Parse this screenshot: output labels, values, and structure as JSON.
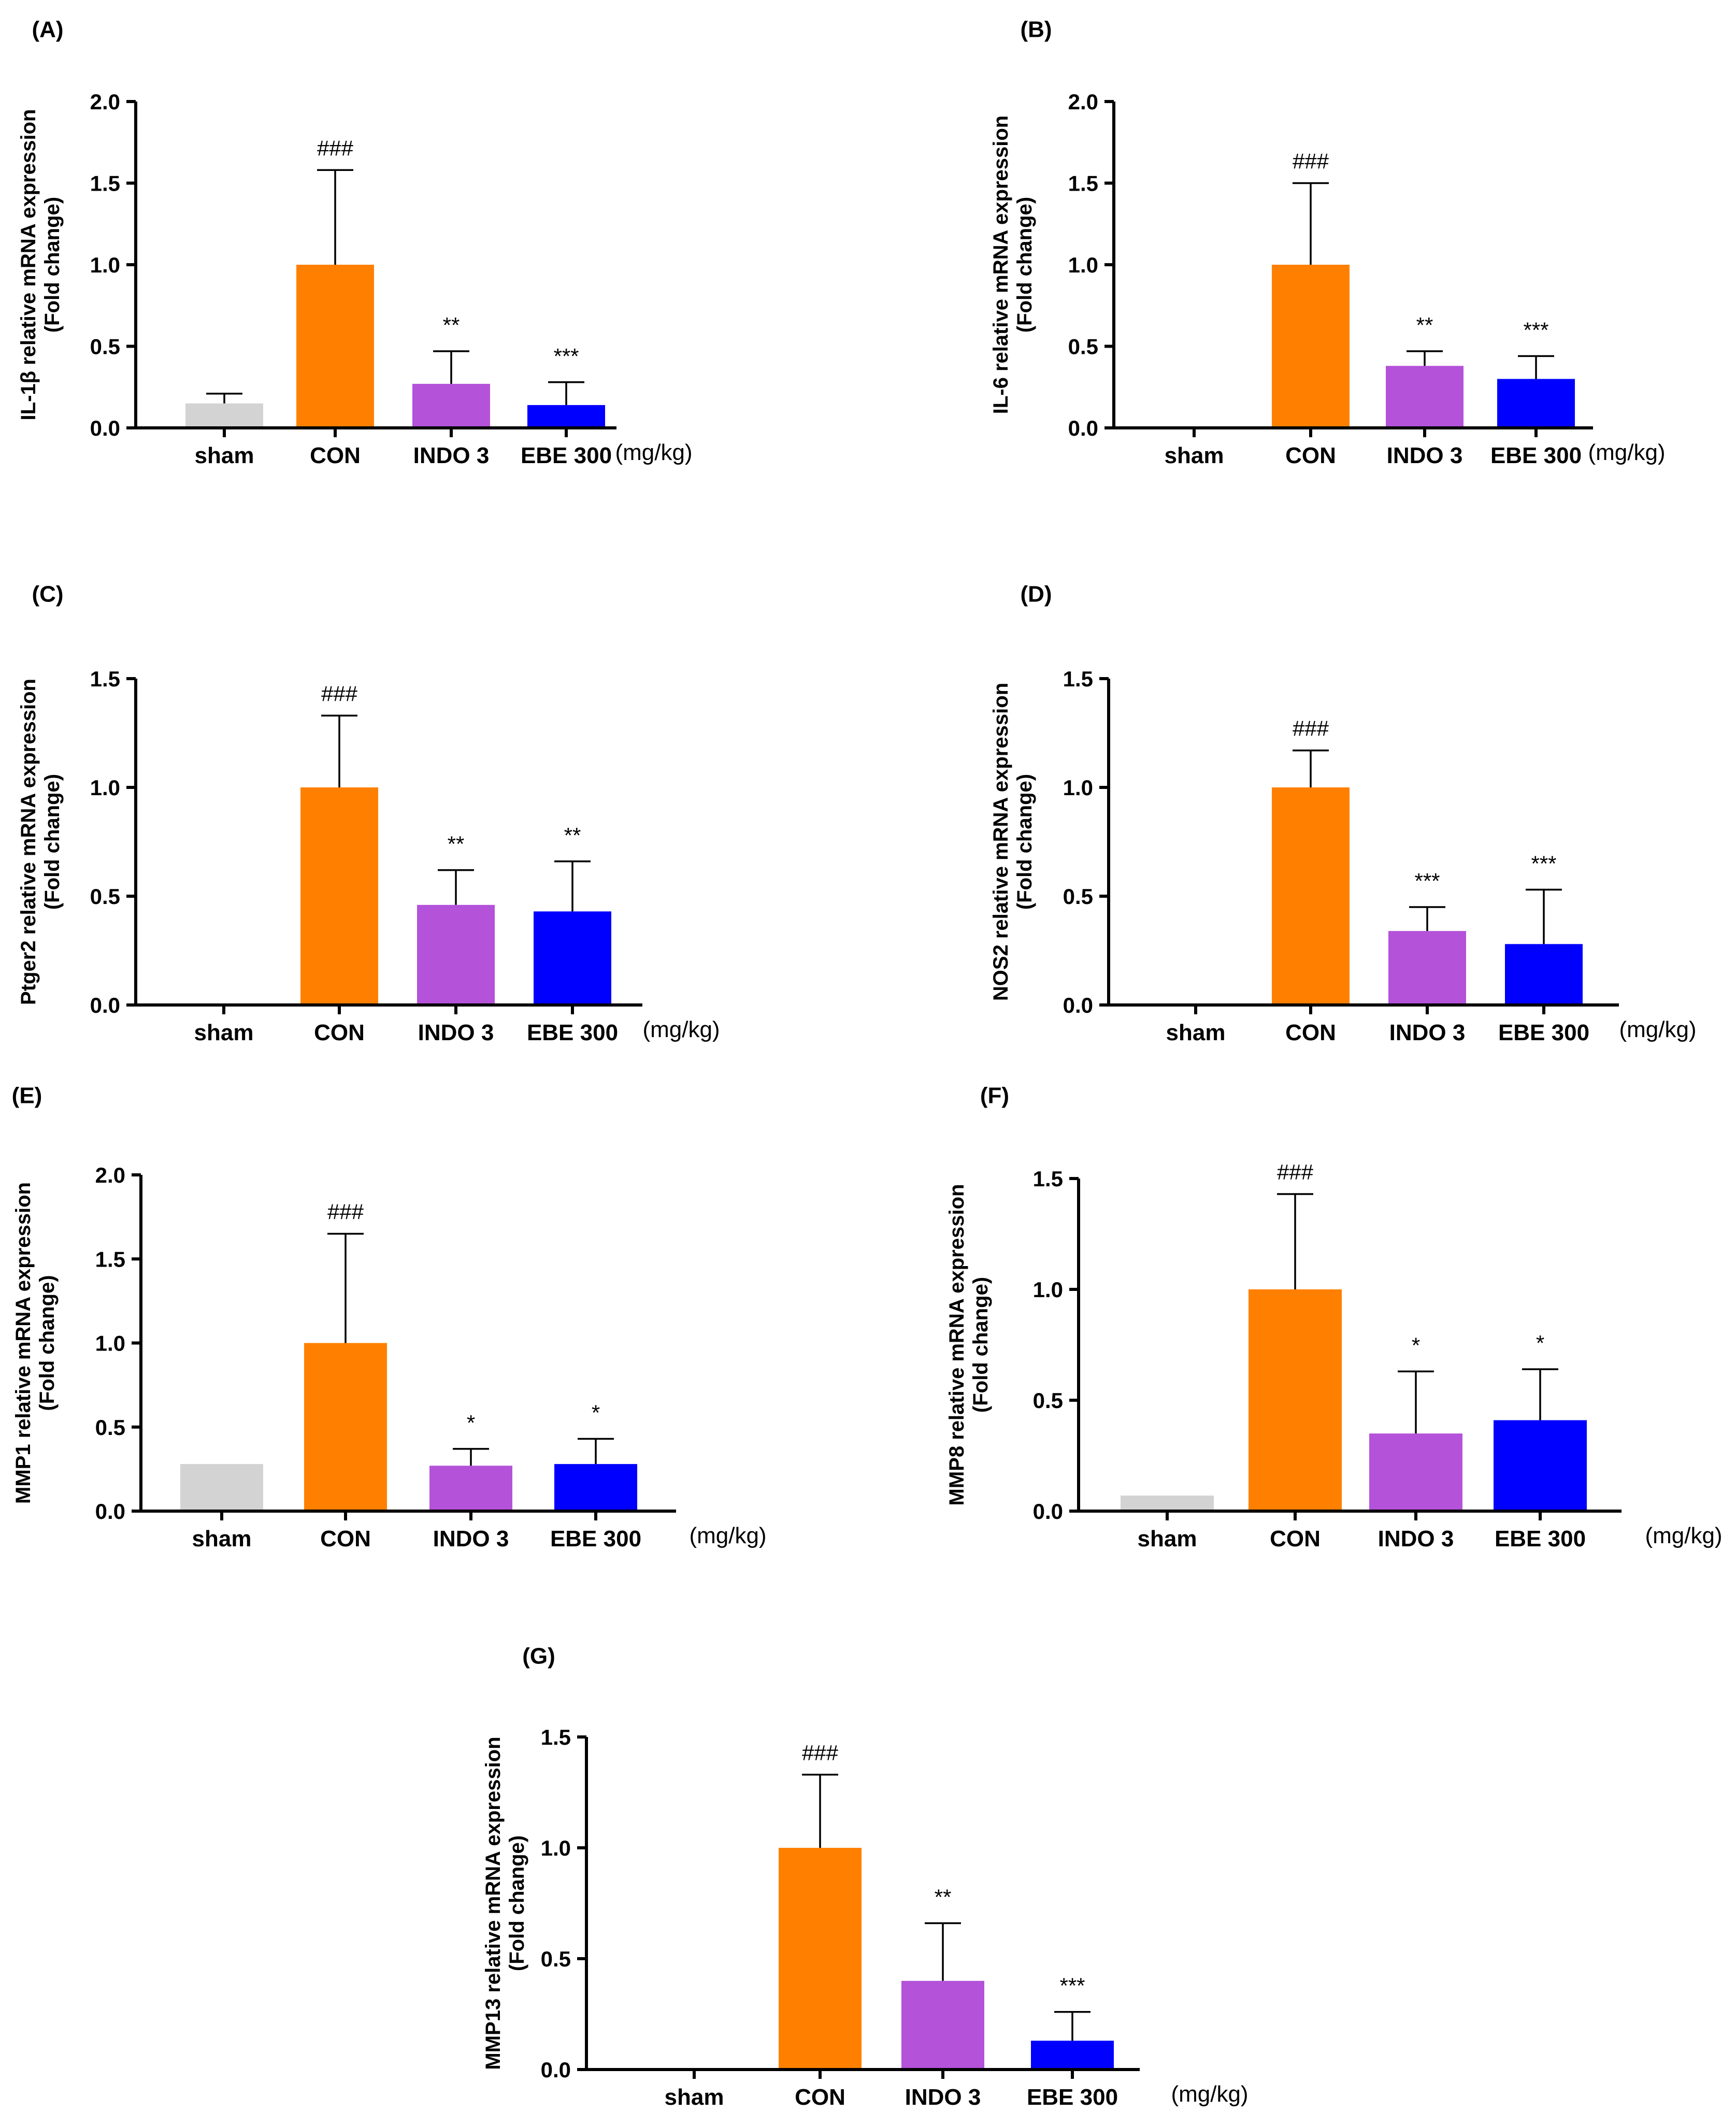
{
  "figure": {
    "unit_label": "(mg/kg)"
  },
  "colors": {
    "sham": "#d3d3d3",
    "CON": "#ff8000",
    "INDO 3": "#b452d9",
    "EBE 300": "#0000ff"
  },
  "chart_data": [
    {
      "type": "bar",
      "panel": "(A)",
      "ylabel_line1": "IL-1β relative mRNA expression",
      "ylabel_line2": "(Fold change)",
      "categories": [
        "sham",
        "CON",
        "INDO 3",
        "EBE 300"
      ],
      "values": [
        0.15,
        1.0,
        0.27,
        0.14
      ],
      "errors": [
        0.06,
        0.58,
        0.2,
        0.14
      ],
      "significance": [
        "",
        "###",
        "**",
        "***"
      ],
      "ylim": [
        0,
        2.0
      ],
      "yticks": [
        "0.0",
        "0.5",
        "1.0",
        "1.5",
        "2.0"
      ]
    },
    {
      "type": "bar",
      "panel": "(B)",
      "ylabel_line1": "IL-6 relative mRNA expression",
      "ylabel_line2": "(Fold change)",
      "categories": [
        "sham",
        "CON",
        "INDO 3",
        "EBE 300"
      ],
      "values": [
        0.0,
        1.0,
        0.38,
        0.3
      ],
      "errors": [
        0,
        0.5,
        0.09,
        0.14
      ],
      "significance": [
        "",
        "###",
        "**",
        "***"
      ],
      "ylim": [
        0,
        2.0
      ],
      "yticks": [
        "0.0",
        "0.5",
        "1.0",
        "1.5",
        "2.0"
      ]
    },
    {
      "type": "bar",
      "panel": "(C)",
      "ylabel_line1": "Ptger2 relative mRNA expression",
      "ylabel_line2": "(Fold change)",
      "categories": [
        "sham",
        "CON",
        "INDO 3",
        "EBE 300"
      ],
      "values": [
        0.0,
        1.0,
        0.46,
        0.43
      ],
      "errors": [
        0,
        0.33,
        0.16,
        0.23
      ],
      "significance": [
        "",
        "###",
        "**",
        "**"
      ],
      "ylim": [
        0,
        1.5
      ],
      "yticks": [
        "0.0",
        "0.5",
        "1.0",
        "1.5"
      ]
    },
    {
      "type": "bar",
      "panel": "(D)",
      "ylabel_line1": "NOS2 relative mRNA expression",
      "ylabel_line2": "(Fold change)",
      "categories": [
        "sham",
        "CON",
        "INDO 3",
        "EBE 300"
      ],
      "values": [
        0.0,
        1.0,
        0.34,
        0.28
      ],
      "errors": [
        0,
        0.17,
        0.11,
        0.25
      ],
      "significance": [
        "",
        "###",
        "***",
        "***"
      ],
      "ylim": [
        0,
        1.5
      ],
      "yticks": [
        "0.0",
        "0.5",
        "1.0",
        "1.5"
      ]
    },
    {
      "type": "bar",
      "panel": "(E)",
      "ylabel_line1": "MMP1 relative mRNA expression",
      "ylabel_line2": "(Fold change)",
      "categories": [
        "sham",
        "CON",
        "INDO 3",
        "EBE 300"
      ],
      "values": [
        0.28,
        1.0,
        0.27,
        0.28
      ],
      "errors": [
        0,
        0.65,
        0.1,
        0.15
      ],
      "significance": [
        "",
        "###",
        "*",
        "*"
      ],
      "ylim": [
        0,
        2.0
      ],
      "yticks": [
        "0.0",
        "0.5",
        "1.0",
        "1.5",
        "2.0"
      ]
    },
    {
      "type": "bar",
      "panel": "(F)",
      "ylabel_line1": "MMP8 relative mRNA expression",
      "ylabel_line2": "(Fold change)",
      "categories": [
        "sham",
        "CON",
        "INDO 3",
        "EBE 300"
      ],
      "values": [
        0.07,
        1.0,
        0.35,
        0.41
      ],
      "errors": [
        0,
        0.43,
        0.28,
        0.23
      ],
      "significance": [
        "",
        "###",
        "*",
        "*"
      ],
      "ylim": [
        0,
        1.5
      ],
      "yticks": [
        "0.0",
        "0.5",
        "1.0",
        "1.5"
      ]
    },
    {
      "type": "bar",
      "panel": "(G)",
      "ylabel_line1": "MMP13 relative mRNA expression",
      "ylabel_line2": "(Fold change)",
      "categories": [
        "sham",
        "CON",
        "INDO 3",
        "EBE 300"
      ],
      "values": [
        0.0,
        1.0,
        0.4,
        0.13
      ],
      "errors": [
        0,
        0.33,
        0.26,
        0.13
      ],
      "significance": [
        "",
        "###",
        "**",
        "***"
      ],
      "ylim": [
        0,
        1.5
      ],
      "yticks": [
        "0.0",
        "0.5",
        "1.0",
        "1.5"
      ]
    }
  ]
}
